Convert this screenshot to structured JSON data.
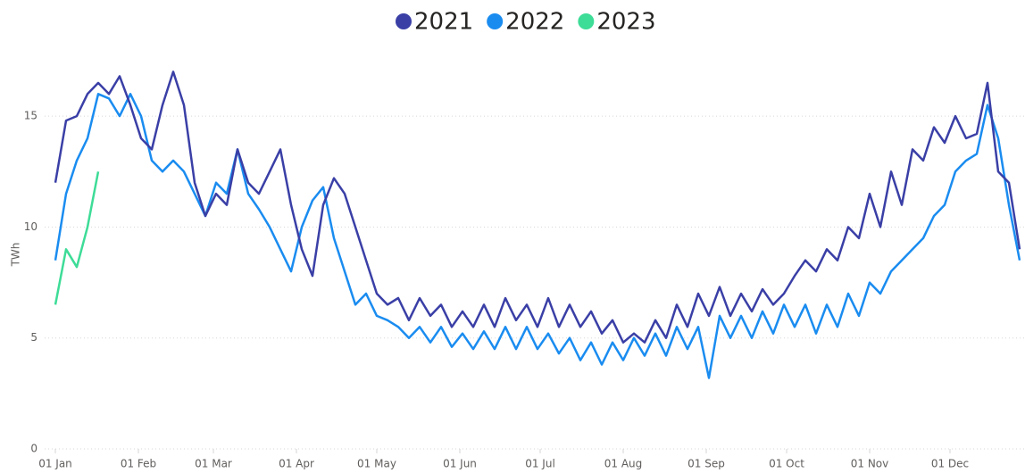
{
  "chart_data": {
    "type": "line",
    "y_label": "TWh",
    "x": [
      0,
      4,
      8,
      12,
      16,
      20,
      24,
      28,
      32,
      36,
      40,
      44,
      48,
      52,
      56,
      60,
      64,
      68,
      72,
      76,
      80,
      84,
      88,
      92,
      96,
      100,
      104,
      108,
      112,
      116,
      120,
      124,
      128,
      132,
      136,
      140,
      144,
      148,
      152,
      156,
      160,
      164,
      168,
      172,
      176,
      180,
      184,
      188,
      192,
      196,
      200,
      204,
      208,
      212,
      216,
      220,
      224,
      228,
      232,
      236,
      240,
      244,
      248,
      252,
      256,
      260,
      264,
      268,
      272,
      276,
      280,
      284,
      288,
      292,
      296,
      300,
      304,
      308,
      312,
      316,
      320,
      324,
      328,
      332,
      336,
      340,
      344,
      348,
      352,
      356,
      360
    ],
    "xlim": [
      0,
      362
    ],
    "xticks": [
      {
        "value": 0,
        "label": "01 Jan"
      },
      {
        "value": 31,
        "label": "01 Feb"
      },
      {
        "value": 59,
        "label": "01 Mar"
      },
      {
        "value": 90,
        "label": "01 Apr"
      },
      {
        "value": 120,
        "label": "01 May"
      },
      {
        "value": 151,
        "label": "01 Jun"
      },
      {
        "value": 181,
        "label": "01 Jul"
      },
      {
        "value": 212,
        "label": "01 Aug"
      },
      {
        "value": 243,
        "label": "01 Sep"
      },
      {
        "value": 273,
        "label": "01 Oct"
      },
      {
        "value": 304,
        "label": "01 Nov"
      },
      {
        "value": 334,
        "label": "01 Dec"
      }
    ],
    "ylim": [
      0,
      17.5
    ],
    "yticks": [
      0,
      5,
      10,
      15
    ],
    "grid": true,
    "legend": "top",
    "series": [
      {
        "name": "2021",
        "color": "#3a3fa6",
        "values": [
          12,
          14.8,
          15,
          16,
          16.5,
          16,
          16.8,
          15.5,
          14,
          13.5,
          15.5,
          17,
          15.5,
          12,
          10.5,
          11.5,
          11,
          13.5,
          12,
          11.5,
          12.5,
          13.5,
          11,
          9,
          7.8,
          11,
          12.2,
          11.5,
          10,
          8.5,
          7,
          6.5,
          6.8,
          5.8,
          6.8,
          6,
          6.5,
          5.5,
          6.2,
          5.5,
          6.5,
          5.5,
          6.8,
          5.8,
          6.5,
          5.5,
          6.8,
          5.5,
          6.5,
          5.5,
          6.2,
          5.2,
          5.8,
          4.8,
          5.2,
          4.8,
          5.8,
          5,
          6.5,
          5.5,
          7,
          6,
          7.3,
          6,
          7,
          6.2,
          7.2,
          6.5,
          7,
          7.8,
          8.5,
          8,
          9,
          8.5,
          10,
          9.5,
          11.5,
          10,
          12.5,
          11,
          13.5,
          13,
          14.5,
          13.8,
          15,
          14,
          14.2,
          16.5,
          12.5,
          12,
          9
        ]
      },
      {
        "name": "2022",
        "color": "#1a8cf0",
        "values": [
          8.5,
          11.5,
          13,
          14,
          16,
          15.8,
          15,
          16,
          15,
          13,
          12.5,
          13,
          12.5,
          11.5,
          10.5,
          12,
          11.5,
          13.5,
          11.5,
          10.8,
          10,
          9,
          8,
          10,
          11.2,
          11.8,
          9.5,
          8,
          6.5,
          7,
          6,
          5.8,
          5.5,
          5,
          5.5,
          4.8,
          5.5,
          4.6,
          5.2,
          4.5,
          5.3,
          4.5,
          5.5,
          4.5,
          5.5,
          4.5,
          5.2,
          4.3,
          5,
          4,
          4.8,
          3.8,
          4.8,
          4,
          5,
          4.2,
          5.2,
          4.2,
          5.5,
          4.5,
          5.5,
          3.2,
          6,
          5,
          6,
          5,
          6.2,
          5.2,
          6.5,
          5.5,
          6.5,
          5.2,
          6.5,
          5.5,
          7,
          6,
          7.5,
          7,
          8,
          8.5,
          9,
          9.5,
          10.5,
          11,
          12.5,
          13,
          13.3,
          15.5,
          14,
          11,
          8.5
        ]
      },
      {
        "name": "2023",
        "color": "#3ddc97",
        "values": [
          6.5,
          9,
          8.2,
          10,
          12.5,
          null,
          null,
          null,
          null,
          null,
          null,
          null,
          null,
          null,
          null,
          null,
          null,
          null,
          null,
          null,
          null,
          null,
          null,
          null,
          null,
          null,
          null,
          null,
          null,
          null,
          null,
          null,
          null,
          null,
          null,
          null,
          null,
          null,
          null,
          null,
          null,
          null,
          null,
          null,
          null,
          null,
          null,
          null,
          null,
          null,
          null,
          null,
          null,
          null,
          null,
          null,
          null,
          null,
          null,
          null,
          null,
          null,
          null,
          null,
          null,
          null,
          null,
          null,
          null,
          null,
          null,
          null,
          null,
          null,
          null,
          null,
          null,
          null,
          null,
          null,
          null,
          null,
          null,
          null,
          null,
          null,
          null,
          null,
          null,
          null,
          null
        ]
      }
    ]
  }
}
